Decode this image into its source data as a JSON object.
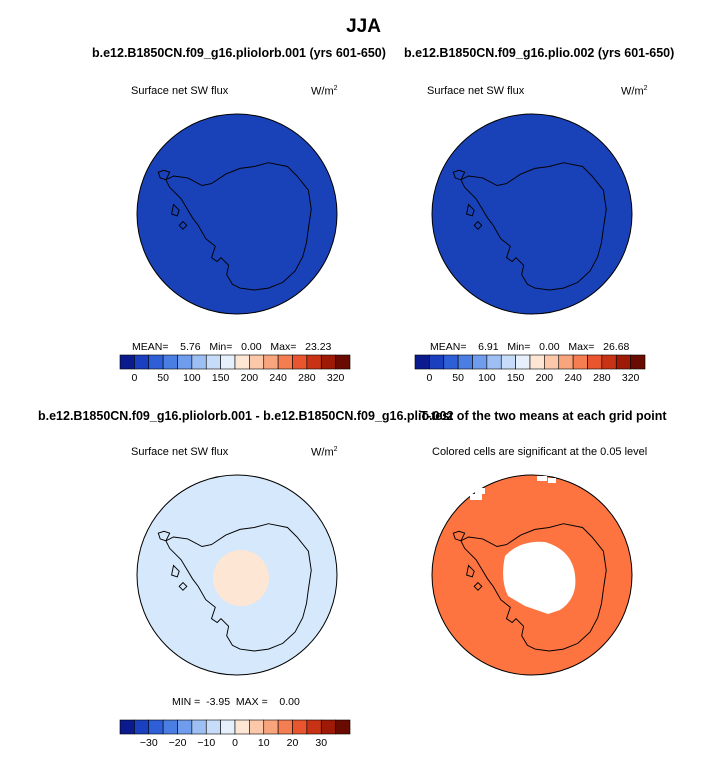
{
  "figure": {
    "title": "JJA"
  },
  "panels": [
    {
      "id": "p1",
      "case_title": "b.e12.B1850CN.f09_g16.pliolorb.001 (yrs 601-650)",
      "left_label": "Surface net SW flux",
      "units_base": "W/m",
      "units_exp": "2",
      "stats": {
        "mean_label": "MEAN=",
        "mean": "5.76",
        "min_label": "Min=",
        "min": "0.00",
        "max_label": "Max=",
        "max": "23.23"
      },
      "fill_color": "#1a42b8"
    },
    {
      "id": "p2",
      "case_title": "b.e12.B1850CN.f09_g16.plio.002 (yrs 601-650)",
      "left_label": "Surface net SW flux",
      "units_base": "W/m",
      "units_exp": "2",
      "stats": {
        "mean_label": "MEAN=",
        "mean": "6.91",
        "min_label": "Min=",
        "min": "0.00",
        "max_label": "Max=",
        "max": "26.68"
      },
      "fill_color": "#1a42b8"
    },
    {
      "id": "p3",
      "case_title": "b.e12.B1850CN.f09_g16.pliolorb.001 - b.e12.B1850CN.f09_g16.plio.002",
      "left_label": "Surface net SW flux",
      "units_base": "W/m",
      "units_exp": "2",
      "stats": {
        "min_label": "MIN =",
        "min": "-3.95",
        "max_label": "MAX =",
        "max": "0.00"
      },
      "fill_color": "#d6e8fb",
      "center_fill": "#fde6d4"
    },
    {
      "id": "p4",
      "case_title": "T-test of the two means at each grid point",
      "left_label": "Colored cells are significant at the 0.05 level",
      "fill_color": "#fd7440",
      "center_fill": "#ffffff"
    }
  ],
  "chart_data": [
    {
      "type": "heatmap",
      "title": "b.e12.B1850CN.f09_g16.pliolorb.001 (yrs 601-650)",
      "variable": "Surface net SW flux",
      "units": "W/m2",
      "mean": 5.76,
      "min": 0.0,
      "max": 23.23,
      "colorbar_ticks": [
        "0",
        "50",
        "100",
        "150",
        "200",
        "240",
        "280",
        "320"
      ]
    },
    {
      "type": "heatmap",
      "title": "b.e12.B1850CN.f09_g16.plio.002 (yrs 601-650)",
      "variable": "Surface net SW flux",
      "units": "W/m2",
      "mean": 6.91,
      "min": 0.0,
      "max": 26.68,
      "colorbar_ticks": [
        "0",
        "50",
        "100",
        "150",
        "200",
        "240",
        "280",
        "320"
      ]
    },
    {
      "type": "heatmap",
      "title": "b.e12.B1850CN.f09_g16.pliolorb.001 - b.e12.B1850CN.f09_g16.plio.002",
      "variable": "Surface net SW flux",
      "units": "W/m2",
      "min": -3.95,
      "max": 0.0,
      "colorbar_ticks": [
        "−30",
        "−20",
        "−10",
        "0",
        "10",
        "20",
        "30"
      ]
    },
    {
      "type": "heatmap",
      "title": "T-test of the two means at each grid point",
      "annotation": "Colored cells are significant at the 0.05 level"
    }
  ],
  "colorbars": {
    "flux": {
      "colors": [
        "#0b1a8c",
        "#1a3fbf",
        "#2f5fd6",
        "#4a7ee2",
        "#6f9cec",
        "#9dbff3",
        "#c7dcf8",
        "#e6f0fc",
        "#fde6d4",
        "#fbc8aa",
        "#f8a57d",
        "#f47e52",
        "#e8552f",
        "#c93315",
        "#9e1a07",
        "#6a0b02"
      ],
      "ticks": [
        "0",
        "50",
        "100",
        "150",
        "200",
        "240",
        "280",
        "320"
      ]
    },
    "diff": {
      "colors": [
        "#0b1a8c",
        "#1a3fbf",
        "#2f5fd6",
        "#4a7ee2",
        "#6f9cec",
        "#9dbff3",
        "#c7dcf8",
        "#e6f0fc",
        "#fde6d4",
        "#fbc8aa",
        "#f8a57d",
        "#f47e52",
        "#e8552f",
        "#c93315",
        "#9e1a07",
        "#6a0b02"
      ],
      "ticks": [
        "−30",
        "−20",
        "−10",
        "0",
        "10",
        "20",
        "30"
      ]
    }
  }
}
